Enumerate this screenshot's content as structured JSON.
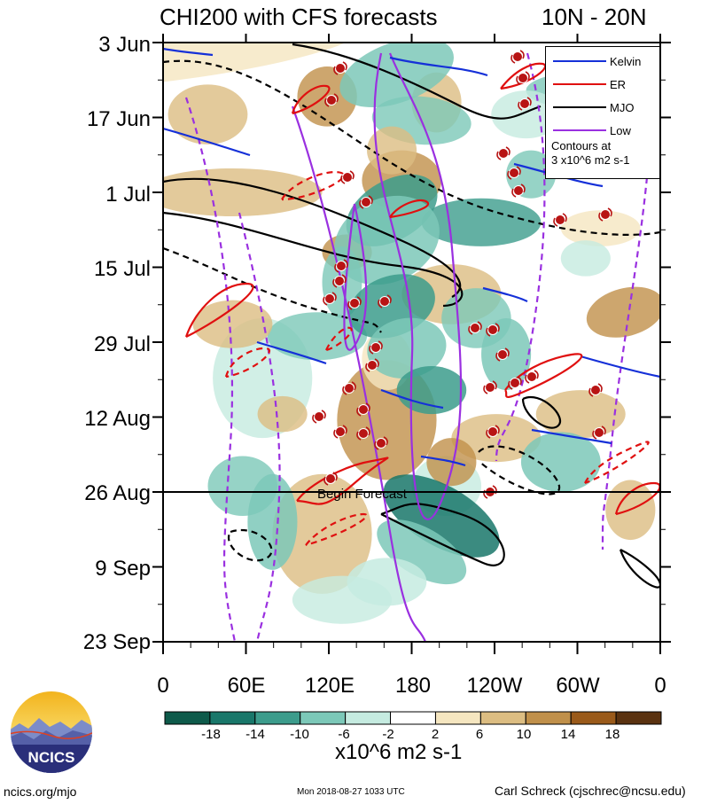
{
  "title_left": "CHI200 with CFS forecasts",
  "title_right": "10N - 20N",
  "y_ticks": [
    "3 Jun",
    "17 Jun",
    "1 Jul",
    "15 Jul",
    "29 Jul",
    "12 Aug",
    "26 Aug",
    "9 Sep",
    "23 Sep"
  ],
  "x_ticks": [
    "0",
    "60E",
    "120E",
    "180",
    "120W",
    "60W",
    "0"
  ],
  "legend": {
    "items": [
      {
        "label": "Kelvin",
        "color": "#1530d8"
      },
      {
        "label": "ER",
        "color": "#e01010"
      },
      {
        "label": "MJO",
        "color": "#000000"
      },
      {
        "label": "Low",
        "color": "#9a30e0"
      }
    ],
    "note_line1": "Contours at",
    "note_line2": "3 x10^6 m2 s-1"
  },
  "forecast_label": "Begin Forecast",
  "colorbar": {
    "labels": [
      "-18",
      "-14",
      "-10",
      "-6",
      "-2",
      "2",
      "6",
      "10",
      "14",
      "18"
    ],
    "colors": [
      "#0e5a4a",
      "#19776a",
      "#3c9c8c",
      "#7cc8b8",
      "#c5ebe0",
      "#ffffff",
      "#f5e6c0",
      "#dcbd82",
      "#c0904a",
      "#9a5a1a",
      "#5a3210"
    ],
    "units": "x10^6 m2 s-1"
  },
  "logo_text": "NCICS",
  "footer": {
    "left": "ncics.org/mjo",
    "middle": "Mon 2018-08-27 1033 UTC",
    "right": "Carl Schreck (cjschrec@ncsu.edu)"
  },
  "chart_data": {
    "type": "heatmap",
    "title": "CHI200 with CFS forecasts",
    "region": "10N - 20N",
    "x_axis": {
      "ticks": [
        "0",
        "60E",
        "120E",
        "180",
        "120W",
        "60W",
        "0"
      ],
      "range_deg": [
        0,
        360
      ]
    },
    "y_axis": {
      "ticks": [
        "3 Jun",
        "17 Jun",
        "1 Jul",
        "15 Jul",
        "29 Jul",
        "12 Aug",
        "26 Aug",
        "9 Sep",
        "23 Sep"
      ],
      "range": [
        "3 Jun",
        "23 Sep"
      ]
    },
    "forecast_start": "26 Aug",
    "colorbar_levels": [
      -18,
      -14,
      -10,
      -6,
      -2,
      2,
      6,
      10,
      14,
      18
    ],
    "units": "x10^6 m2 s-1",
    "contour_interval": 3,
    "contour_series": [
      "Kelvin",
      "ER",
      "MJO",
      "Low"
    ]
  }
}
